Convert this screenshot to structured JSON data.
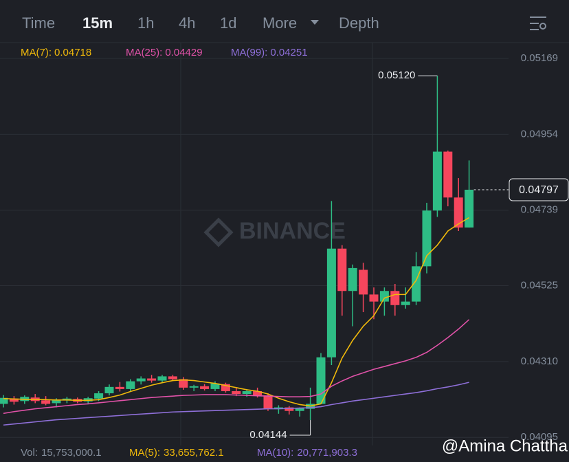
{
  "tabs": [
    "Time",
    "15m",
    "1h",
    "4h",
    "1d",
    "More",
    "Depth"
  ],
  "active_tab": 1,
  "watermark": "BINANCE",
  "credit": "@Amina Chattha",
  "volume": [
    {
      "name": "Vol:",
      "value": 15753000.1,
      "label": "15,753,000.1",
      "color": "#848e9c"
    },
    {
      "name": "MA(5):",
      "value": 33655762.1,
      "label": "33,655,762.1",
      "color": "#f0b90b"
    },
    {
      "name": "MA(10):",
      "value": 20771903.3,
      "label": "20,771,903.3",
      "color": "#8e6fd8"
    }
  ],
  "chart_data": {
    "type": "candlestick",
    "up_color": "#2ebd85",
    "down_color": "#f6465d",
    "ylim": [
      0.04072,
      0.05214
    ],
    "yticks": [
      0.05169,
      0.04954,
      0.04739,
      0.04525,
      {
        "value": 0.0431,
        "label": "0.04310"
      },
      0.04095
    ],
    "grid": true,
    "open": [
      0.0419,
      0.04205,
      0.04198,
      0.04208,
      0.042,
      0.04192,
      0.042,
      0.04204,
      0.04197,
      0.04205,
      0.0422,
      0.04238,
      0.04232,
      0.04254,
      0.04262,
      0.04256,
      0.04268,
      0.0426,
      0.04236,
      0.0424,
      0.04232,
      0.04246,
      0.04226,
      0.04218,
      0.04226,
      0.04214,
      0.04176,
      0.0418,
      0.0417,
      0.04176,
      0.0419,
      0.04322,
      0.0463,
      0.0451,
      0.0457,
      0.045,
      0.0448,
      0.0451,
      0.0447,
      0.0448,
      0.0458,
      0.04738,
      0.04905,
      0.04775,
      0.0469
    ],
    "high": [
      0.04215,
      0.04212,
      0.04214,
      0.04218,
      0.04212,
      0.04206,
      0.0421,
      0.04208,
      0.0421,
      0.04226,
      0.04245,
      0.04252,
      0.0426,
      0.04268,
      0.04272,
      0.04272,
      0.04272,
      0.04266,
      0.04244,
      0.04246,
      0.04254,
      0.0425,
      0.04236,
      0.04232,
      0.04236,
      0.0422,
      0.04186,
      0.04184,
      0.0418,
      0.04236,
      0.04334,
      0.04765,
      0.0464,
      0.04585,
      0.0459,
      0.0452,
      0.0452,
      0.0453,
      0.0452,
      0.0462,
      0.0476,
      0.0512,
      0.04908,
      0.0483,
      0.0488
    ],
    "low": [
      0.0418,
      0.04188,
      0.0419,
      0.04192,
      0.04186,
      0.0418,
      0.04192,
      0.04192,
      0.0419,
      0.04198,
      0.04214,
      0.04225,
      0.04226,
      0.04245,
      0.0425,
      0.0425,
      0.04255,
      0.0423,
      0.04226,
      0.04228,
      0.04226,
      0.04222,
      0.04212,
      0.0421,
      0.04208,
      0.0417,
      0.04162,
      0.0416,
      0.04154,
      0.04144,
      0.0419,
      0.043,
      0.0444,
      0.0441,
      0.0445,
      0.0443,
      0.0444,
      0.0444,
      0.0446,
      0.0447,
      0.0456,
      0.0472,
      0.0475,
      0.0468,
      0.0469
    ],
    "close": [
      0.04207,
      0.04196,
      0.0421,
      0.04198,
      0.0419,
      0.04201,
      0.04205,
      0.04196,
      0.04206,
      0.0422,
      0.04238,
      0.04232,
      0.04254,
      0.04262,
      0.04256,
      0.04268,
      0.0426,
      0.04236,
      0.0424,
      0.04232,
      0.04248,
      0.04226,
      0.04218,
      0.04226,
      0.04214,
      0.04176,
      0.0418,
      0.0417,
      0.04178,
      0.0419,
      0.04322,
      0.0463,
      0.0451,
      0.04575,
      0.045,
      0.0448,
      0.0451,
      0.0447,
      0.0448,
      0.0458,
      0.04738,
      0.04905,
      0.04775,
      0.0469,
      0.04797
    ],
    "ma_lines": [
      {
        "name": "MA(7):",
        "last": 0.04718,
        "color": "#f0b90b",
        "values": [
          0.04205,
          0.04204,
          0.04203,
          0.04203,
          0.04202,
          0.04201,
          0.04201,
          0.042,
          0.042,
          0.04202,
          0.04208,
          0.04215,
          0.04225,
          0.04234,
          0.04243,
          0.0425,
          0.04256,
          0.04258,
          0.04256,
          0.04252,
          0.04248,
          0.04242,
          0.04236,
          0.0423,
          0.04226,
          0.04218,
          0.04206,
          0.04196,
          0.04188,
          0.04184,
          0.0419,
          0.0425,
          0.0432,
          0.0437,
          0.0441,
          0.0444,
          0.0449,
          0.045,
          0.045,
          0.0454,
          0.0461,
          0.0464,
          0.0468,
          0.047,
          0.04718
        ]
      },
      {
        "name": "MA(25):",
        "last": 0.04429,
        "color": "#e052a8",
        "values": [
          0.04163,
          0.04168,
          0.04172,
          0.04176,
          0.04179,
          0.04182,
          0.04185,
          0.04188,
          0.0419,
          0.04193,
          0.04196,
          0.04199,
          0.04202,
          0.04205,
          0.04208,
          0.0421,
          0.04212,
          0.04214,
          0.04215,
          0.04216,
          0.04216,
          0.04216,
          0.04215,
          0.04214,
          0.04213,
          0.04212,
          0.04211,
          0.0421,
          0.0421,
          0.04211,
          0.04218,
          0.0424,
          0.04255,
          0.04268,
          0.04278,
          0.04288,
          0.04296,
          0.04304,
          0.04312,
          0.04322,
          0.04336,
          0.04356,
          0.04378,
          0.04402,
          0.04429
        ]
      },
      {
        "name": "MA(99):",
        "last": 0.04251,
        "color": "#8e6fd8",
        "values": [
          0.0413,
          0.04133,
          0.04136,
          0.04139,
          0.04142,
          0.04145,
          0.04147,
          0.04149,
          0.04151,
          0.04153,
          0.04155,
          0.04157,
          0.04159,
          0.04161,
          0.04163,
          0.04165,
          0.04167,
          0.04168,
          0.04169,
          0.0417,
          0.04171,
          0.04172,
          0.04173,
          0.04174,
          0.04175,
          0.04176,
          0.04176,
          0.04177,
          0.04178,
          0.04179,
          0.04182,
          0.04188,
          0.04193,
          0.04198,
          0.04202,
          0.04206,
          0.0421,
          0.04214,
          0.04218,
          0.04222,
          0.04227,
          0.04233,
          0.04238,
          0.04244,
          0.04251
        ]
      }
    ],
    "high_label": {
      "value": 0.0512,
      "label": "0.05120"
    },
    "low_label": {
      "value": 0.04144,
      "label": "0.04144"
    },
    "last_price": {
      "value": 0.04797,
      "label": "0.04797"
    }
  }
}
